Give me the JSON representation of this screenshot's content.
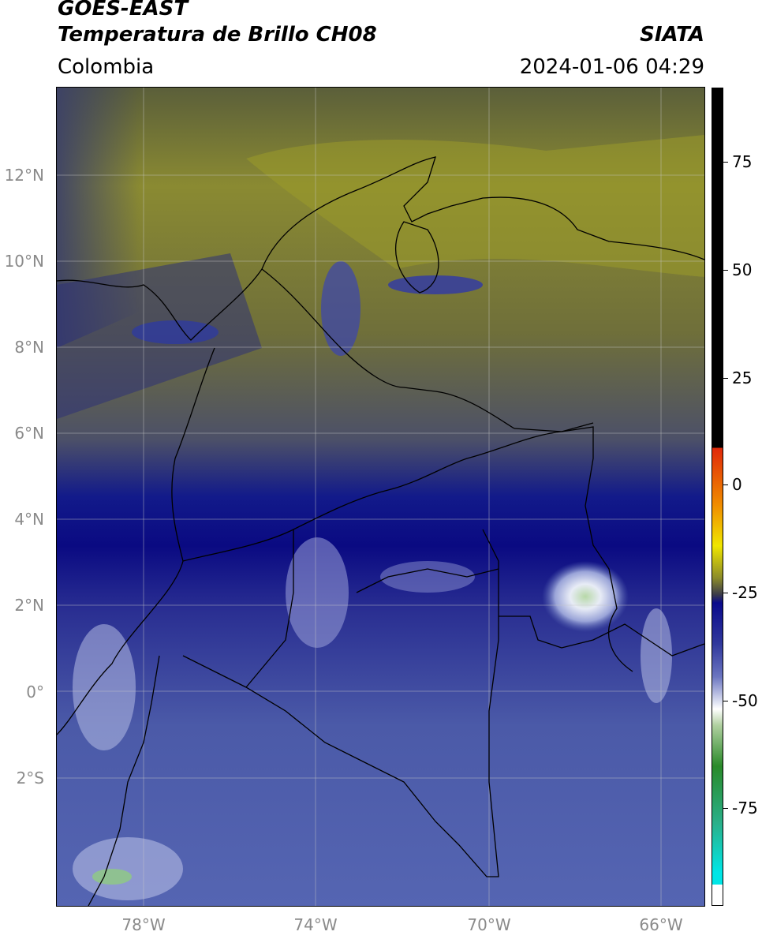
{
  "header": {
    "title_line1": "GOES-EAST",
    "title_line2": "Temperatura de Brillo CH08",
    "agency": "SIATA",
    "region": "Colombia",
    "timestamp": "2024-01-06 04:29"
  },
  "map": {
    "lat_labels": [
      "12°N",
      "10°N",
      "8°N",
      "6°N",
      "4°N",
      "2°N",
      "0°",
      "2°S"
    ],
    "lon_labels": [
      "78°W",
      "74°W",
      "70°W",
      "66°W"
    ],
    "extent": {
      "lon_min": -80.0,
      "lon_max": -65.0,
      "lat_min": -5.0,
      "lat_max": 14.0
    },
    "gridlines": true
  },
  "colorbar": {
    "tick_labels": [
      "75",
      "50",
      "25",
      "0",
      "-25",
      "-50",
      "-75"
    ],
    "tick_values": [
      75,
      50,
      25,
      0,
      -25,
      -50,
      -75
    ],
    "range": [
      -100,
      90
    ],
    "colors": {
      "warm_top": "#000000",
      "red": "#e0280a",
      "orange": "#f08c00",
      "yellow": "#f0e600",
      "olive": "#7a7a2a",
      "navy": "#0a0a8c",
      "lavender": "#9aa0d8",
      "white": "#ffffff",
      "green": "#2a8a2a",
      "cyan": "#00e6e6"
    }
  }
}
